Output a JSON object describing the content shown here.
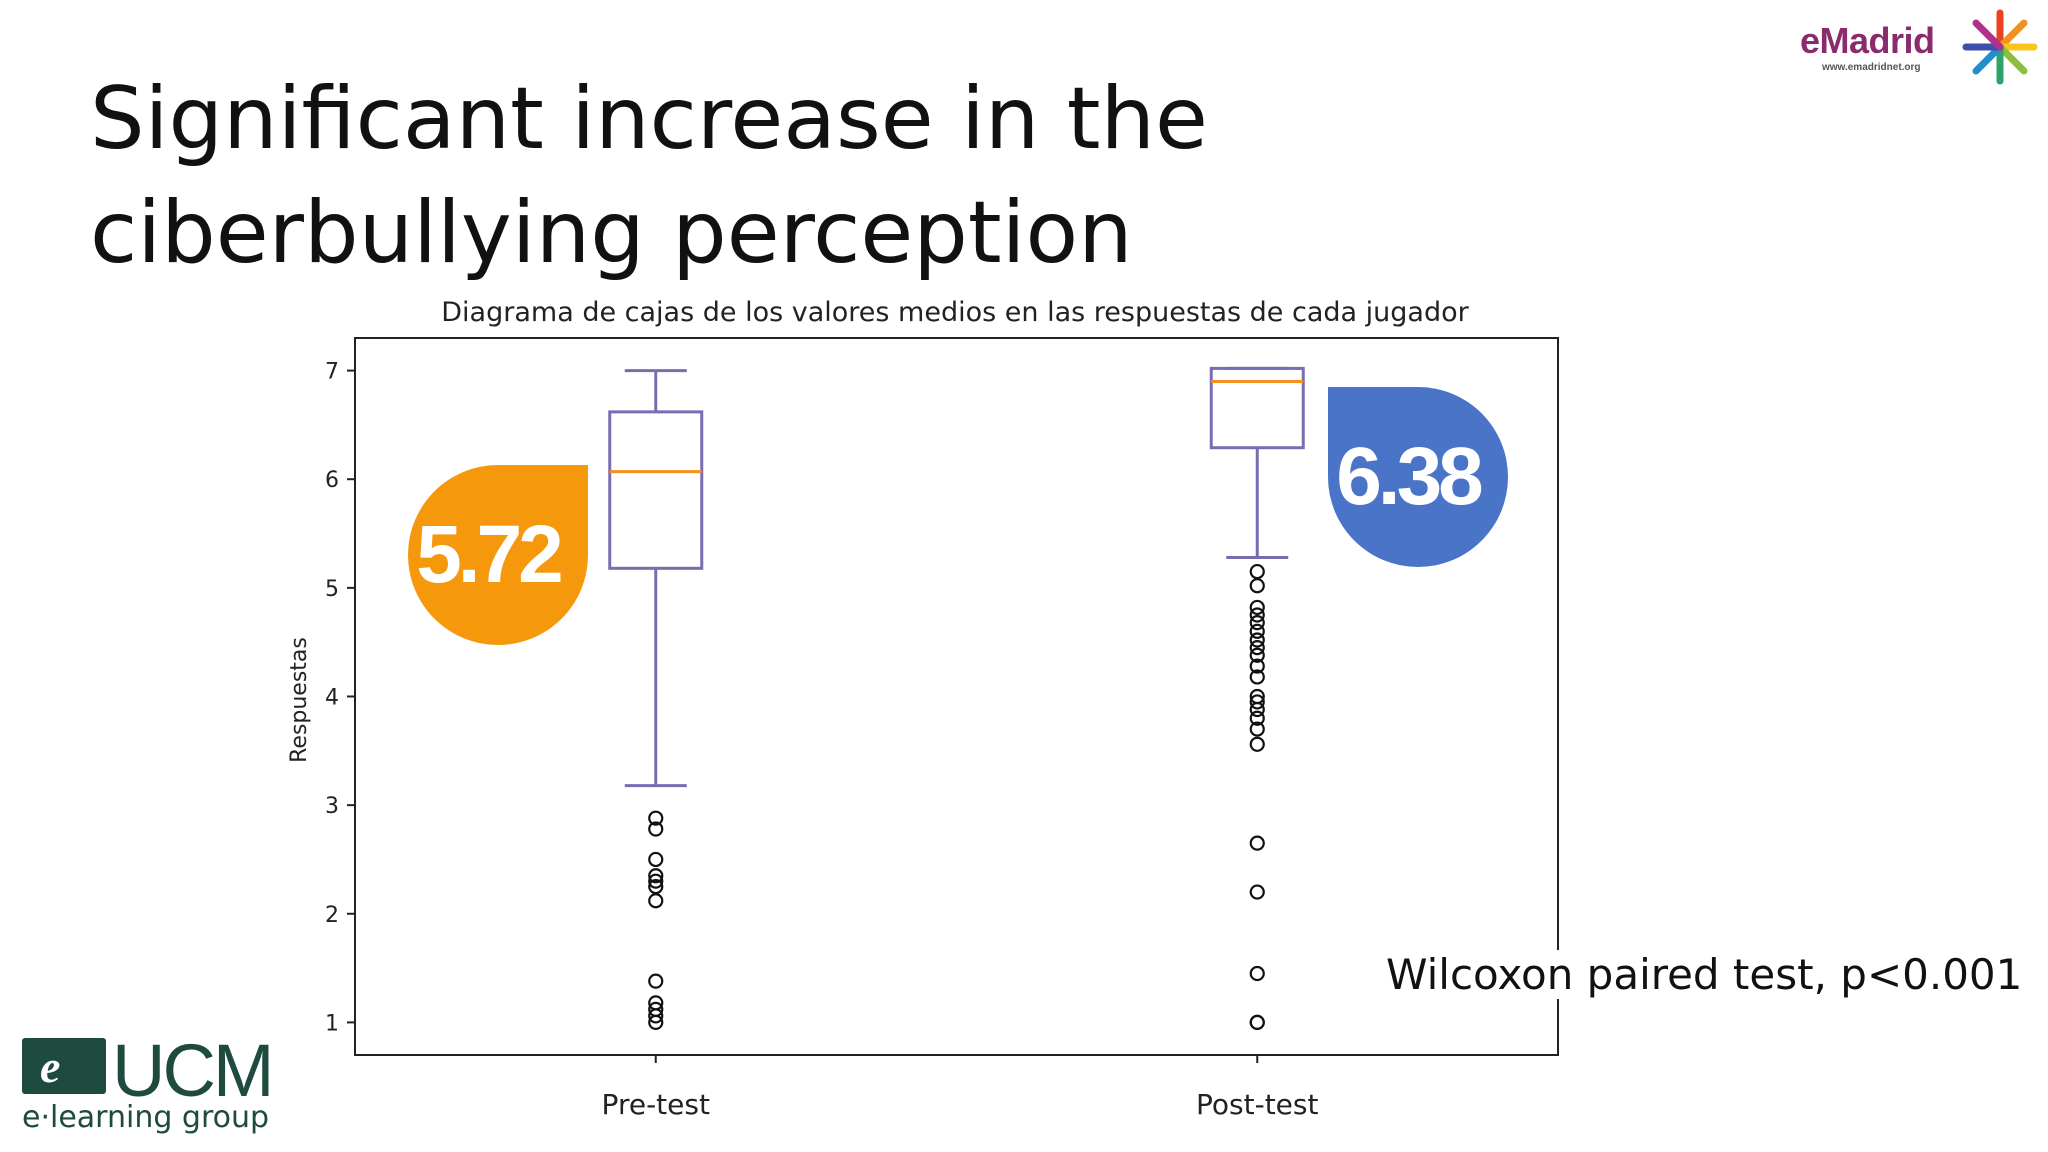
{
  "slide": {
    "title": "Significant increase in the ciberbullying perception",
    "note": "Wilcoxon paired test, p<0.001"
  },
  "logos": {
    "emadrid_text": "eMadrid",
    "emadrid_url": "www.emadridnet.org",
    "ucm_mark": "e",
    "ucm_text": "UCM",
    "ucm_subtitle": "e·learning group"
  },
  "colors": {
    "box": "#7b6bb0",
    "median": "#f39120",
    "orange_badge": "#f6980b",
    "blue_badge": "#4a74c8"
  },
  "chart_data": {
    "type": "boxplot",
    "title": "Diagrama de cajas de los valores medios en las respuestas de cada jugador",
    "xlabel": "",
    "ylabel": "Respuestas",
    "ylim": [
      0.7,
      7.3
    ],
    "yticks": [
      1,
      2,
      3,
      4,
      5,
      6,
      7
    ],
    "grid": false,
    "categories": [
      "Pre-test",
      "Post-test"
    ],
    "boxes": [
      {
        "name": "Pre-test",
        "whisker_low": 3.18,
        "q1": 5.18,
        "median": 6.07,
        "q3": 6.62,
        "whisker_high": 7.0,
        "outliers": [
          2.88,
          2.78,
          2.5,
          2.35,
          2.3,
          2.25,
          2.12,
          1.38,
          1.18,
          1.12,
          1.06,
          1.0
        ]
      },
      {
        "name": "Post-test",
        "whisker_low": 5.28,
        "q1": 6.29,
        "median": 6.9,
        "q3": 7.02,
        "whisker_high": 7.02,
        "outliers": [
          5.15,
          5.02,
          4.82,
          4.75,
          4.68,
          4.6,
          4.52,
          4.45,
          4.38,
          4.28,
          4.18,
          4.0,
          3.95,
          3.88,
          3.8,
          3.7,
          3.56,
          2.65,
          2.2,
          1.45,
          1.0,
          1.0
        ]
      }
    ],
    "annotations": [
      {
        "label": "5.72",
        "box": "Pre-test",
        "color": "orange"
      },
      {
        "label": "6.38",
        "box": "Post-test",
        "color": "blue"
      }
    ]
  }
}
